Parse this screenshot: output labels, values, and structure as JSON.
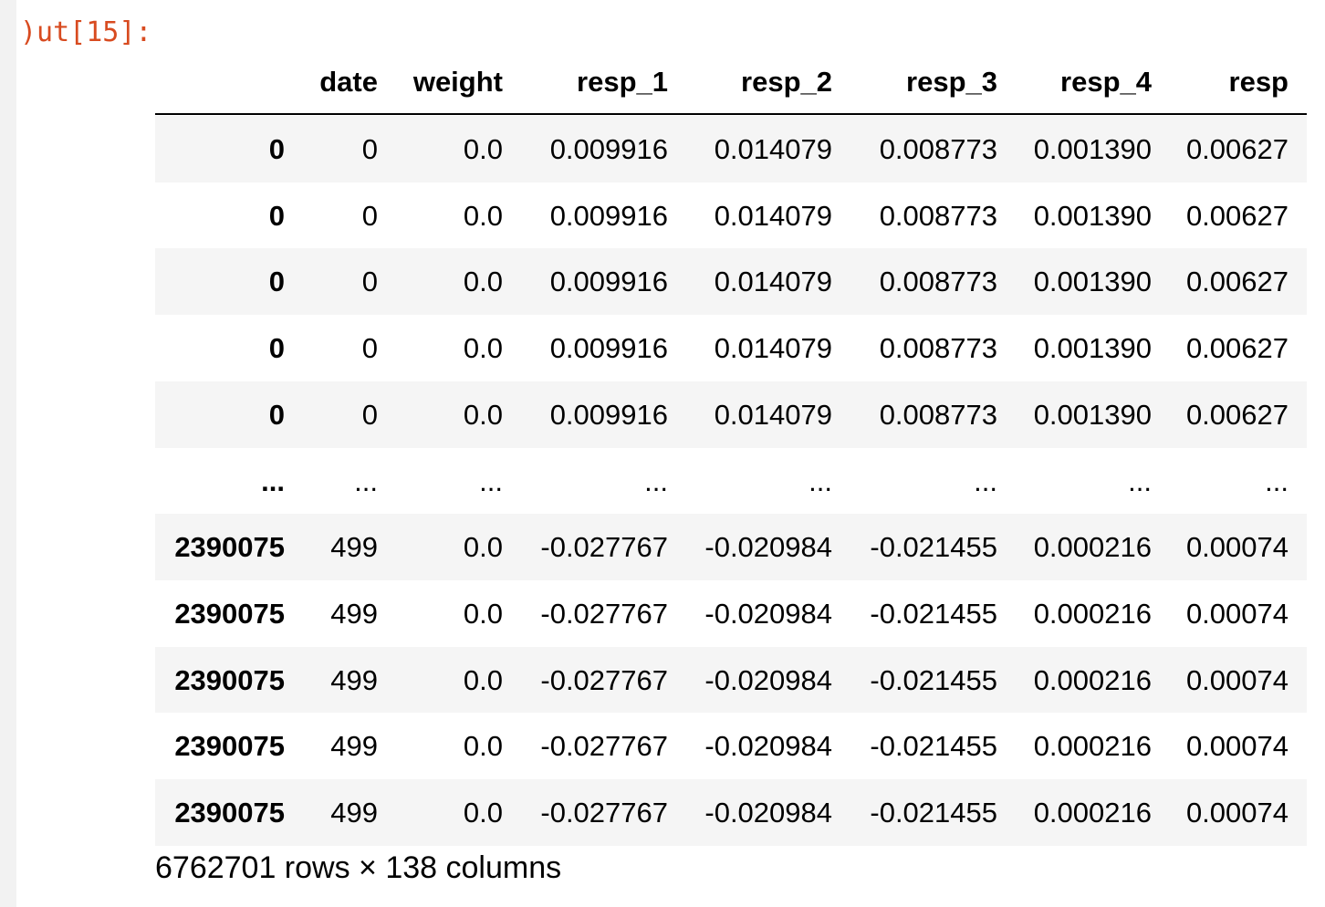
{
  "prompt": ")ut[15]:",
  "table": {
    "columns": [
      "date",
      "weight",
      "resp_1",
      "resp_2",
      "resp_3",
      "resp_4",
      "resp"
    ],
    "rows": [
      {
        "index": "0",
        "cells": [
          "0",
          "0.0",
          "0.009916",
          "0.014079",
          "0.008773",
          "0.001390",
          "0.00627"
        ]
      },
      {
        "index": "0",
        "cells": [
          "0",
          "0.0",
          "0.009916",
          "0.014079",
          "0.008773",
          "0.001390",
          "0.00627"
        ]
      },
      {
        "index": "0",
        "cells": [
          "0",
          "0.0",
          "0.009916",
          "0.014079",
          "0.008773",
          "0.001390",
          "0.00627"
        ]
      },
      {
        "index": "0",
        "cells": [
          "0",
          "0.0",
          "0.009916",
          "0.014079",
          "0.008773",
          "0.001390",
          "0.00627"
        ]
      },
      {
        "index": "0",
        "cells": [
          "0",
          "0.0",
          "0.009916",
          "0.014079",
          "0.008773",
          "0.001390",
          "0.00627"
        ]
      },
      {
        "index": "...",
        "cells": [
          "...",
          "...",
          "...",
          "...",
          "...",
          "...",
          "..."
        ]
      },
      {
        "index": "2390075",
        "cells": [
          "499",
          "0.0",
          "-0.027767",
          "-0.020984",
          "-0.021455",
          "0.000216",
          "0.00074"
        ]
      },
      {
        "index": "2390075",
        "cells": [
          "499",
          "0.0",
          "-0.027767",
          "-0.020984",
          "-0.021455",
          "0.000216",
          "0.00074"
        ]
      },
      {
        "index": "2390075",
        "cells": [
          "499",
          "0.0",
          "-0.027767",
          "-0.020984",
          "-0.021455",
          "0.000216",
          "0.00074"
        ]
      },
      {
        "index": "2390075",
        "cells": [
          "499",
          "0.0",
          "-0.027767",
          "-0.020984",
          "-0.021455",
          "0.000216",
          "0.00074"
        ]
      },
      {
        "index": "2390075",
        "cells": [
          "499",
          "0.0",
          "-0.027767",
          "-0.020984",
          "-0.021455",
          "0.000216",
          "0.00074"
        ]
      }
    ],
    "footer": "6762701 rows × 138 columns"
  }
}
